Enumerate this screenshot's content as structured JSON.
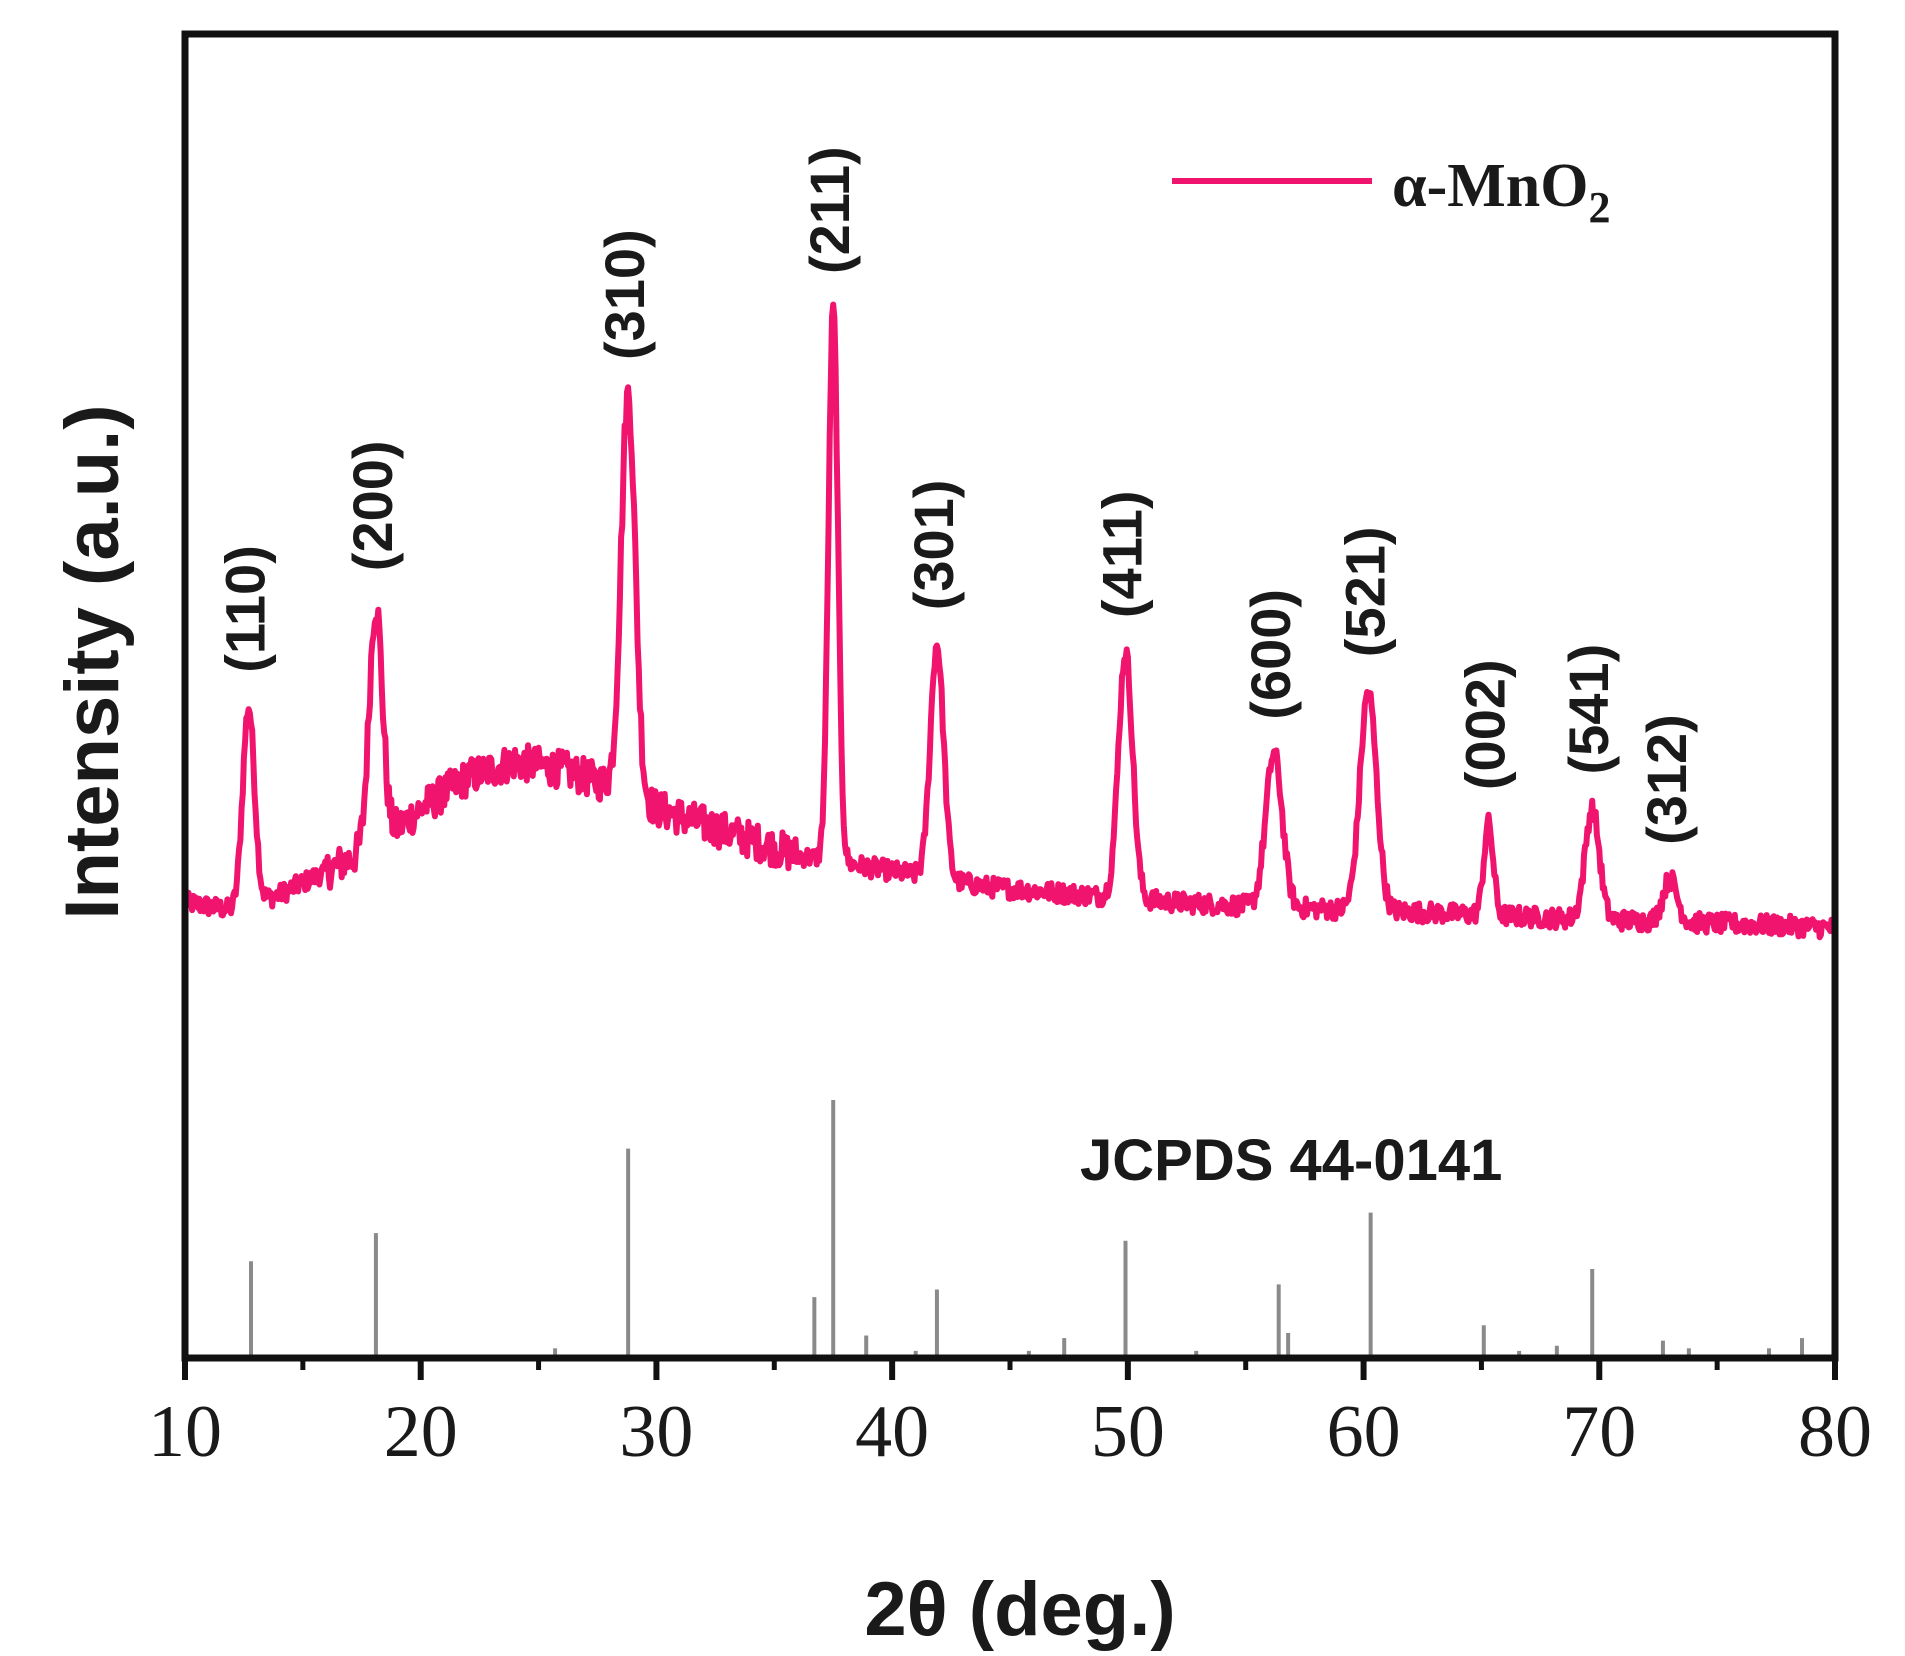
{
  "chart_data": {
    "type": "line",
    "title": "",
    "xlabel": "2θ (deg.)",
    "ylabel": "Intensity (a.u.)",
    "xlim": [
      10,
      80
    ],
    "ylim": [
      0,
      100
    ],
    "x_ticks": [
      10,
      20,
      30,
      40,
      50,
      60,
      70,
      80
    ],
    "x_tick_labels": [
      "10",
      "20",
      "30",
      "40",
      "50",
      "60",
      "70",
      "80"
    ],
    "colors": {
      "series": "#f0146e",
      "reference": "#8a8a8a",
      "axis": "#111111"
    },
    "legend": {
      "position": "top-right",
      "label_main": "α-MnO",
      "label_sub": "2"
    },
    "series": [
      {
        "name": "α-MnO2",
        "baseline": [
          [
            10,
            24
          ],
          [
            12,
            23
          ],
          [
            14,
            25
          ],
          [
            16,
            28
          ],
          [
            18,
            31
          ],
          [
            20,
            36
          ],
          [
            22,
            40
          ],
          [
            24,
            42
          ],
          [
            26,
            41
          ],
          [
            28,
            39
          ],
          [
            30,
            36
          ],
          [
            32,
            34
          ],
          [
            34,
            32
          ],
          [
            36,
            30
          ],
          [
            38,
            29
          ],
          [
            40,
            28
          ],
          [
            42,
            27
          ],
          [
            44,
            26
          ],
          [
            46,
            25.5
          ],
          [
            48,
            25
          ],
          [
            50,
            24.5
          ],
          [
            52,
            24
          ],
          [
            54,
            23.7
          ],
          [
            56,
            23.4
          ],
          [
            58,
            23.2
          ],
          [
            60,
            23
          ],
          [
            62,
            22.8
          ],
          [
            64,
            22.5
          ],
          [
            66,
            22.3
          ],
          [
            68,
            22
          ],
          [
            70,
            21.8
          ],
          [
            72,
            21.6
          ],
          [
            74,
            21.4
          ],
          [
            76,
            21.2
          ],
          [
            78,
            21
          ],
          [
            80,
            20.7
          ]
        ],
        "peaks": [
          {
            "two_theta": 12.7,
            "intensity": 49,
            "width": 0.25
          },
          {
            "two_theta": 18.1,
            "intensity": 62,
            "width": 0.28
          },
          {
            "two_theta": 28.8,
            "intensity": 89,
            "width": 0.3
          },
          {
            "two_theta": 37.5,
            "intensity": 100,
            "width": 0.2
          },
          {
            "two_theta": 41.9,
            "intensity": 57,
            "width": 0.28
          },
          {
            "two_theta": 49.9,
            "intensity": 56,
            "width": 0.3
          },
          {
            "two_theta": 56.2,
            "intensity": 43,
            "width": 0.35
          },
          {
            "two_theta": 60.2,
            "intensity": 51,
            "width": 0.35
          },
          {
            "two_theta": 65.3,
            "intensity": 34,
            "width": 0.2
          },
          {
            "two_theta": 69.7,
            "intensity": 36,
            "width": 0.3
          },
          {
            "two_theta": 73.0,
            "intensity": 27,
            "width": 0.3
          }
        ]
      }
    ],
    "peak_labels": [
      {
        "label": "(110)",
        "two_theta": 12.7
      },
      {
        "label": "(200)",
        "two_theta": 18.1
      },
      {
        "label": "(310)",
        "two_theta": 28.8
      },
      {
        "label": "(211)",
        "two_theta": 37.5
      },
      {
        "label": "(301)",
        "two_theta": 41.9
      },
      {
        "label": "(411)",
        "two_theta": 49.9
      },
      {
        "label": "(600)",
        "two_theta": 56.2
      },
      {
        "label": "(521)",
        "two_theta": 60.2
      },
      {
        "label": "(002)",
        "two_theta": 65.3
      },
      {
        "label": "(541)",
        "two_theta": 69.7
      },
      {
        "label": "(312)",
        "two_theta": 73.0
      }
    ],
    "reference": {
      "name": "JCPDS 44-0141",
      "lines": [
        {
          "two_theta": 12.8,
          "intensity": 37
        },
        {
          "two_theta": 18.1,
          "intensity": 48
        },
        {
          "two_theta": 25.7,
          "intensity": 3
        },
        {
          "two_theta": 28.8,
          "intensity": 81
        },
        {
          "two_theta": 36.7,
          "intensity": 23
        },
        {
          "two_theta": 37.5,
          "intensity": 100
        },
        {
          "two_theta": 38.9,
          "intensity": 8
        },
        {
          "two_theta": 41.0,
          "intensity": 2
        },
        {
          "two_theta": 41.9,
          "intensity": 26
        },
        {
          "two_theta": 45.8,
          "intensity": 2
        },
        {
          "two_theta": 47.3,
          "intensity": 7
        },
        {
          "two_theta": 49.9,
          "intensity": 45
        },
        {
          "two_theta": 52.9,
          "intensity": 2
        },
        {
          "two_theta": 56.4,
          "intensity": 28
        },
        {
          "two_theta": 56.8,
          "intensity": 9
        },
        {
          "two_theta": 60.3,
          "intensity": 56
        },
        {
          "two_theta": 65.1,
          "intensity": 12
        },
        {
          "two_theta": 66.6,
          "intensity": 2
        },
        {
          "two_theta": 68.2,
          "intensity": 4
        },
        {
          "two_theta": 69.7,
          "intensity": 34
        },
        {
          "two_theta": 72.7,
          "intensity": 6
        },
        {
          "two_theta": 73.8,
          "intensity": 3
        },
        {
          "two_theta": 77.2,
          "intensity": 3
        },
        {
          "two_theta": 78.6,
          "intensity": 7
        }
      ]
    }
  }
}
